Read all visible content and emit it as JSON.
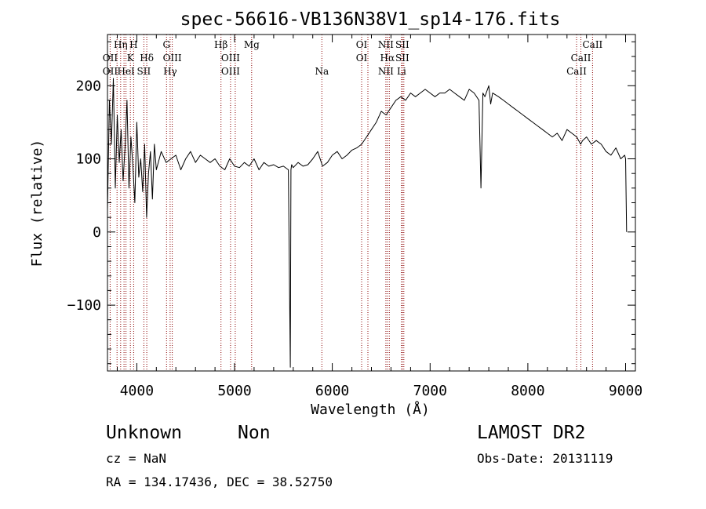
{
  "chart_data": {
    "type": "line",
    "title": "spec-56616-VB136N38V1_sp14-176.fits",
    "xlabel": "Wavelength (Å)",
    "ylabel": "Flux (relative)",
    "xlim": [
      3700,
      9100
    ],
    "ylim": [
      -190,
      270
    ],
    "x_ticks": [
      4000,
      5000,
      6000,
      7000,
      8000,
      9000
    ],
    "y_ticks": [
      -100,
      0,
      100,
      200
    ],
    "grid": false,
    "line_color": "#000000",
    "marker_color": "#8b0000",
    "series": [
      {
        "x": [
          3700,
          3720,
          3740,
          3760,
          3780,
          3800,
          3820,
          3840,
          3860,
          3880,
          3900,
          3920,
          3940,
          3960,
          3980,
          4000,
          4020,
          4040,
          4060,
          4080,
          4100,
          4120,
          4140,
          4160,
          4180,
          4200,
          4250,
          4300,
          4350,
          4400,
          4450,
          4500,
          4550,
          4600,
          4650,
          4700,
          4750,
          4800,
          4850,
          4900,
          4950,
          5000,
          5050,
          5100,
          5150,
          5200,
          5250,
          5300,
          5350,
          5400,
          5450,
          5500,
          5550,
          5570,
          5577,
          5584,
          5600,
          5650,
          5700,
          5750,
          5800,
          5850,
          5900,
          5950,
          6000,
          6050,
          6100,
          6150,
          6200,
          6250,
          6300,
          6350,
          6400,
          6450,
          6500,
          6550,
          6600,
          6650,
          6700,
          6750,
          6800,
          6850,
          6900,
          6950,
          7000,
          7050,
          7100,
          7150,
          7200,
          7250,
          7300,
          7350,
          7400,
          7450,
          7500,
          7520,
          7540,
          7560,
          7600,
          7620,
          7640,
          7700,
          7750,
          7800,
          7850,
          7900,
          7950,
          8000,
          8050,
          8100,
          8150,
          8200,
          8250,
          8300,
          8350,
          8400,
          8450,
          8500,
          8540,
          8560,
          8600,
          8650,
          8700,
          8750,
          8800,
          8850,
          8900,
          8950,
          8990,
          9000,
          9010
        ],
        "y": [
          30,
          180,
          120,
          210,
          60,
          160,
          95,
          140,
          70,
          115,
          180,
          60,
          130,
          90,
          40,
          150,
          75,
          100,
          55,
          120,
          20,
          80,
          110,
          45,
          120,
          85,
          110,
          95,
          100,
          105,
          85,
          100,
          110,
          95,
          105,
          100,
          95,
          100,
          90,
          85,
          100,
          90,
          88,
          95,
          90,
          100,
          85,
          95,
          90,
          92,
          88,
          90,
          85,
          -185,
          85,
          92,
          88,
          95,
          90,
          92,
          100,
          110,
          90,
          95,
          105,
          110,
          100,
          105,
          112,
          115,
          120,
          130,
          140,
          150,
          165,
          160,
          170,
          180,
          185,
          180,
          190,
          185,
          190,
          195,
          190,
          185,
          190,
          190,
          195,
          190,
          185,
          180,
          195,
          190,
          180,
          60,
          190,
          185,
          200,
          175,
          190,
          185,
          180,
          175,
          170,
          165,
          160,
          155,
          150,
          145,
          140,
          135,
          130,
          135,
          125,
          140,
          135,
          130,
          120,
          125,
          130,
          120,
          125,
          120,
          110,
          105,
          115,
          100,
          105,
          100,
          0
        ]
      }
    ],
    "line_markers": [
      {
        "x": 3727,
        "top": "OII",
        "bottom": "OII"
      },
      {
        "x": 3798,
        "top": "H&#951;"
      },
      {
        "x": 3835,
        "top": "H&#951;"
      },
      {
        "x": 3869,
        "top": ""
      },
      {
        "x": 3889,
        "top": "HeI"
      },
      {
        "x": 3934,
        "top": "K"
      },
      {
        "x": 3968,
        "top": "H"
      },
      {
        "x": 4072,
        "top": "SII"
      },
      {
        "x": 4102,
        "top": "H&#948;"
      },
      {
        "x": 4304,
        "top": "G"
      },
      {
        "x": 4341,
        "top": "H&#947;"
      },
      {
        "x": 4363,
        "top": "OIII"
      },
      {
        "x": 4861,
        "top": "H&#946;"
      },
      {
        "x": 4959,
        "top": "OIII"
      },
      {
        "x": 5007,
        "top": "OIII"
      },
      {
        "x": 5175,
        "top": "Mg"
      },
      {
        "x": 5893,
        "top": "Na"
      },
      {
        "x": 6300,
        "top": "OI"
      },
      {
        "x": 6364,
        "top": "OI"
      },
      {
        "x": 6548,
        "top": "NII"
      },
      {
        "x": 6563,
        "top": "H&#945;"
      },
      {
        "x": 6583,
        "top": "NII"
      },
      {
        "x": 6708,
        "top": "Li"
      },
      {
        "x": 6716,
        "top": "SII"
      },
      {
        "x": 6731,
        "top": "SII"
      },
      {
        "x": 8498,
        "top": "CaII"
      },
      {
        "x": 8542,
        "top": "CaII"
      },
      {
        "x": 8662,
        "top": "CaII"
      }
    ],
    "line_labels": [
      {
        "text": "Hη",
        "row": 1,
        "x": 3835
      },
      {
        "text": "H",
        "row": 1,
        "x": 3968
      },
      {
        "text": "OII",
        "row": 2,
        "x": 3727
      },
      {
        "text": "K",
        "row": 2,
        "x": 3934
      },
      {
        "text": "Hδ",
        "row": 2,
        "x": 4102
      },
      {
        "text": "OII",
        "row": 3,
        "x": 3727
      },
      {
        "text": "HeI",
        "row": 3,
        "x": 3889
      },
      {
        "text": "SII",
        "row": 3,
        "x": 4072
      },
      {
        "text": "G",
        "row": 1,
        "x": 4304
      },
      {
        "text": "OIII",
        "row": 2,
        "x": 4363
      },
      {
        "text": "Hγ",
        "row": 3,
        "x": 4341
      },
      {
        "text": "Hβ",
        "row": 1,
        "x": 4861
      },
      {
        "text": "OIII",
        "row": 2,
        "x": 4959
      },
      {
        "text": "OIII",
        "row": 3,
        "x": 4959
      },
      {
        "text": "Mg",
        "row": 1,
        "x": 5175
      },
      {
        "text": "Na",
        "row": 3,
        "x": 5893
      },
      {
        "text": "OI",
        "row": 1,
        "x": 6300
      },
      {
        "text": "OI",
        "row": 2,
        "x": 6300
      },
      {
        "text": "NII",
        "row": 1,
        "x": 6548
      },
      {
        "text": "SII",
        "row": 1,
        "x": 6716
      },
      {
        "text": "Hα",
        "row": 2,
        "x": 6563
      },
      {
        "text": "SII",
        "row": 2,
        "x": 6716
      },
      {
        "text": "NII",
        "row": 3,
        "x": 6548
      },
      {
        "text": "Li",
        "row": 3,
        "x": 6708
      },
      {
        "text": "CaII",
        "row": 1,
        "x": 8662
      },
      {
        "text": "CaII",
        "row": 2,
        "x": 8542
      },
      {
        "text": "CaII",
        "row": 3,
        "x": 8498
      }
    ]
  },
  "footer": {
    "object_class": "Unknown",
    "subclass": "Non",
    "survey": "LAMOST DR2",
    "cz": "cz = NaN",
    "obs_date": "Obs-Date: 20131119",
    "coords": "RA = 134.17436, DEC =  38.52750"
  }
}
